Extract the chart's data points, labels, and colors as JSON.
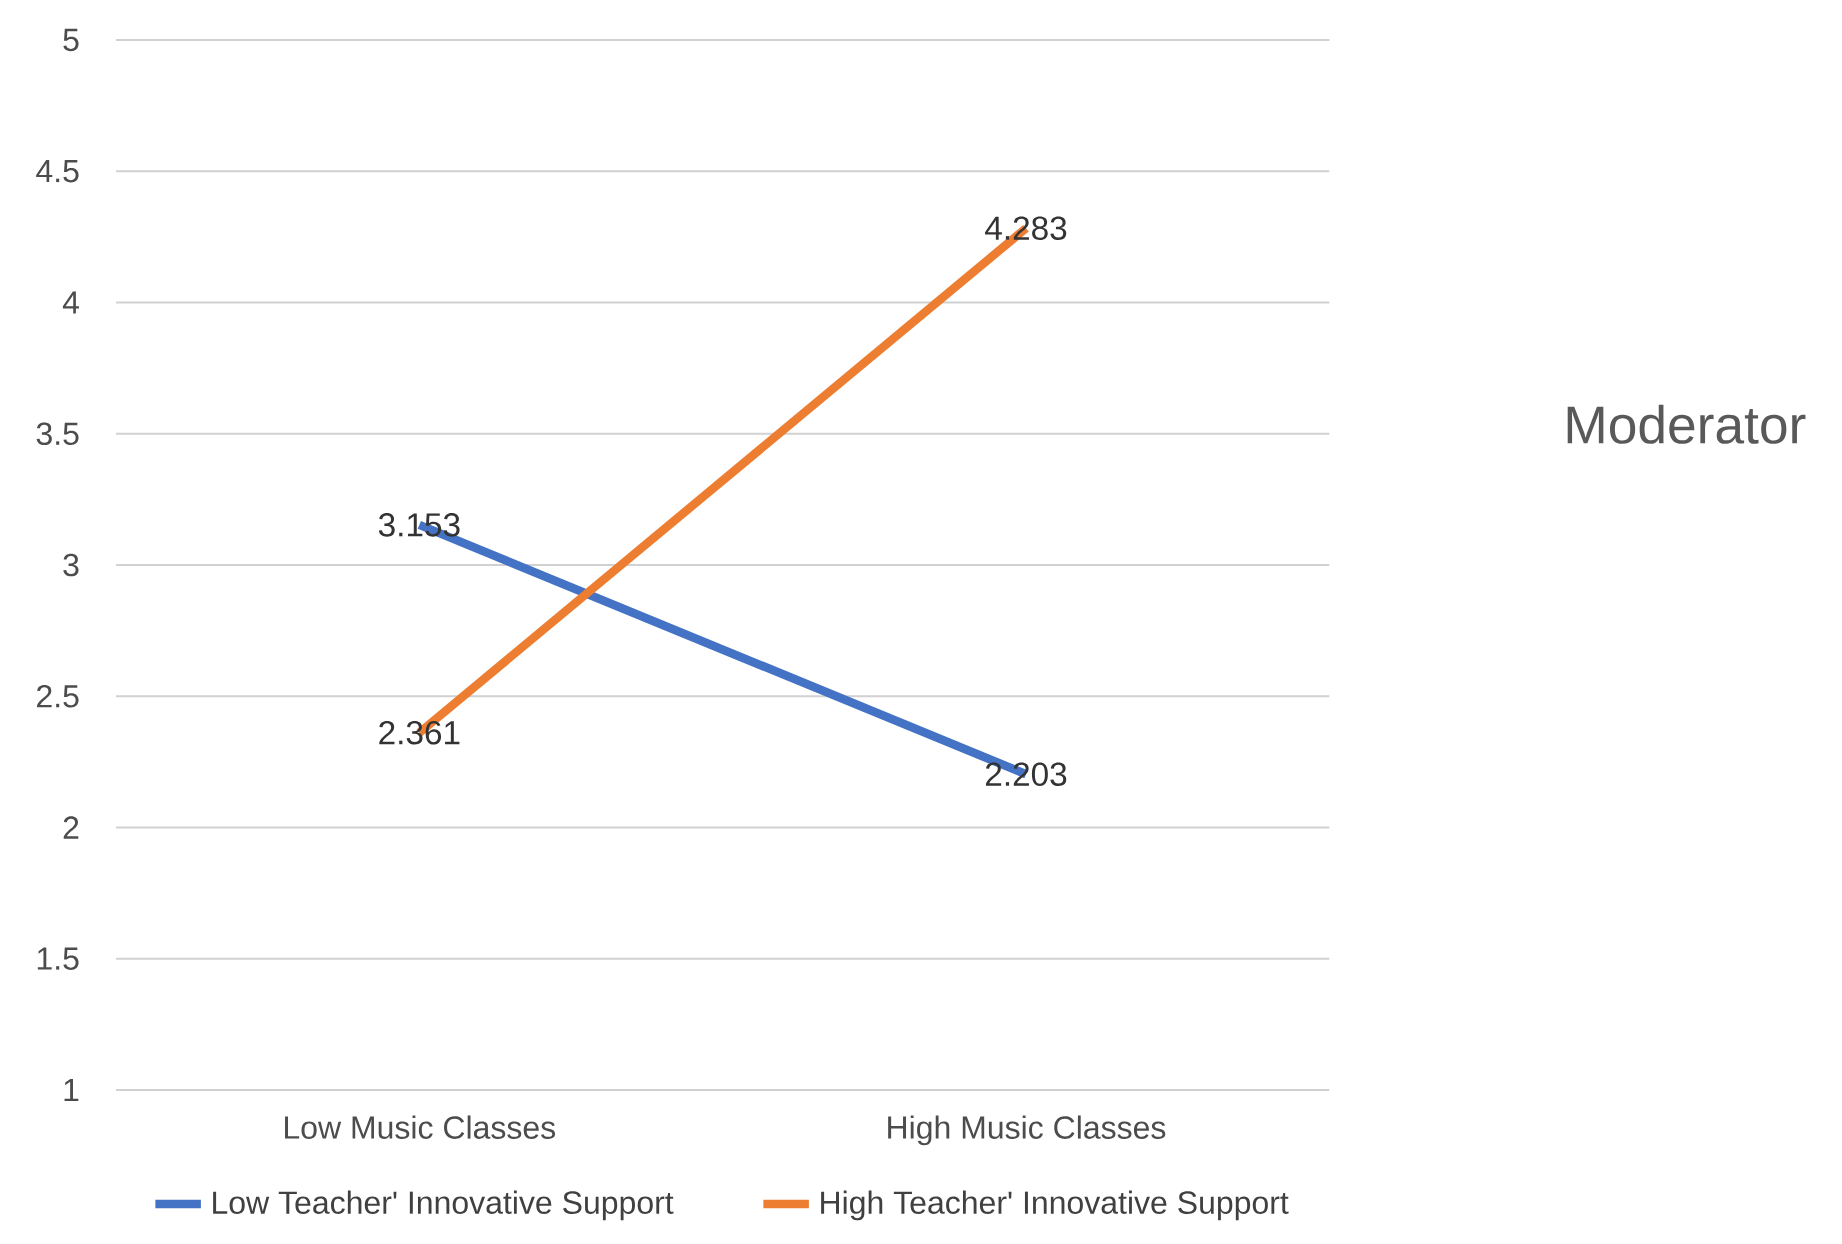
{
  "chart_data": {
    "type": "line",
    "categories": [
      "Low Music Classes",
      "High Music Classes"
    ],
    "series": [
      {
        "name": "Low Teacher' Innovative Support",
        "color": "#4472c4",
        "values": [
          3.153,
          2.203
        ]
      },
      {
        "name": "High Teacher' Innovative Support",
        "color": "#ed7d31",
        "values": [
          2.361,
          4.283
        ]
      }
    ],
    "ylim": [
      1,
      5
    ],
    "yticks": [
      1,
      1.5,
      2,
      2.5,
      3,
      3.5,
      4,
      4.5,
      5
    ],
    "grid": "y",
    "legend": "bottom",
    "data_labels": true,
    "marker": "none",
    "line_style": "solid",
    "annotations": [
      "Moderator"
    ]
  }
}
